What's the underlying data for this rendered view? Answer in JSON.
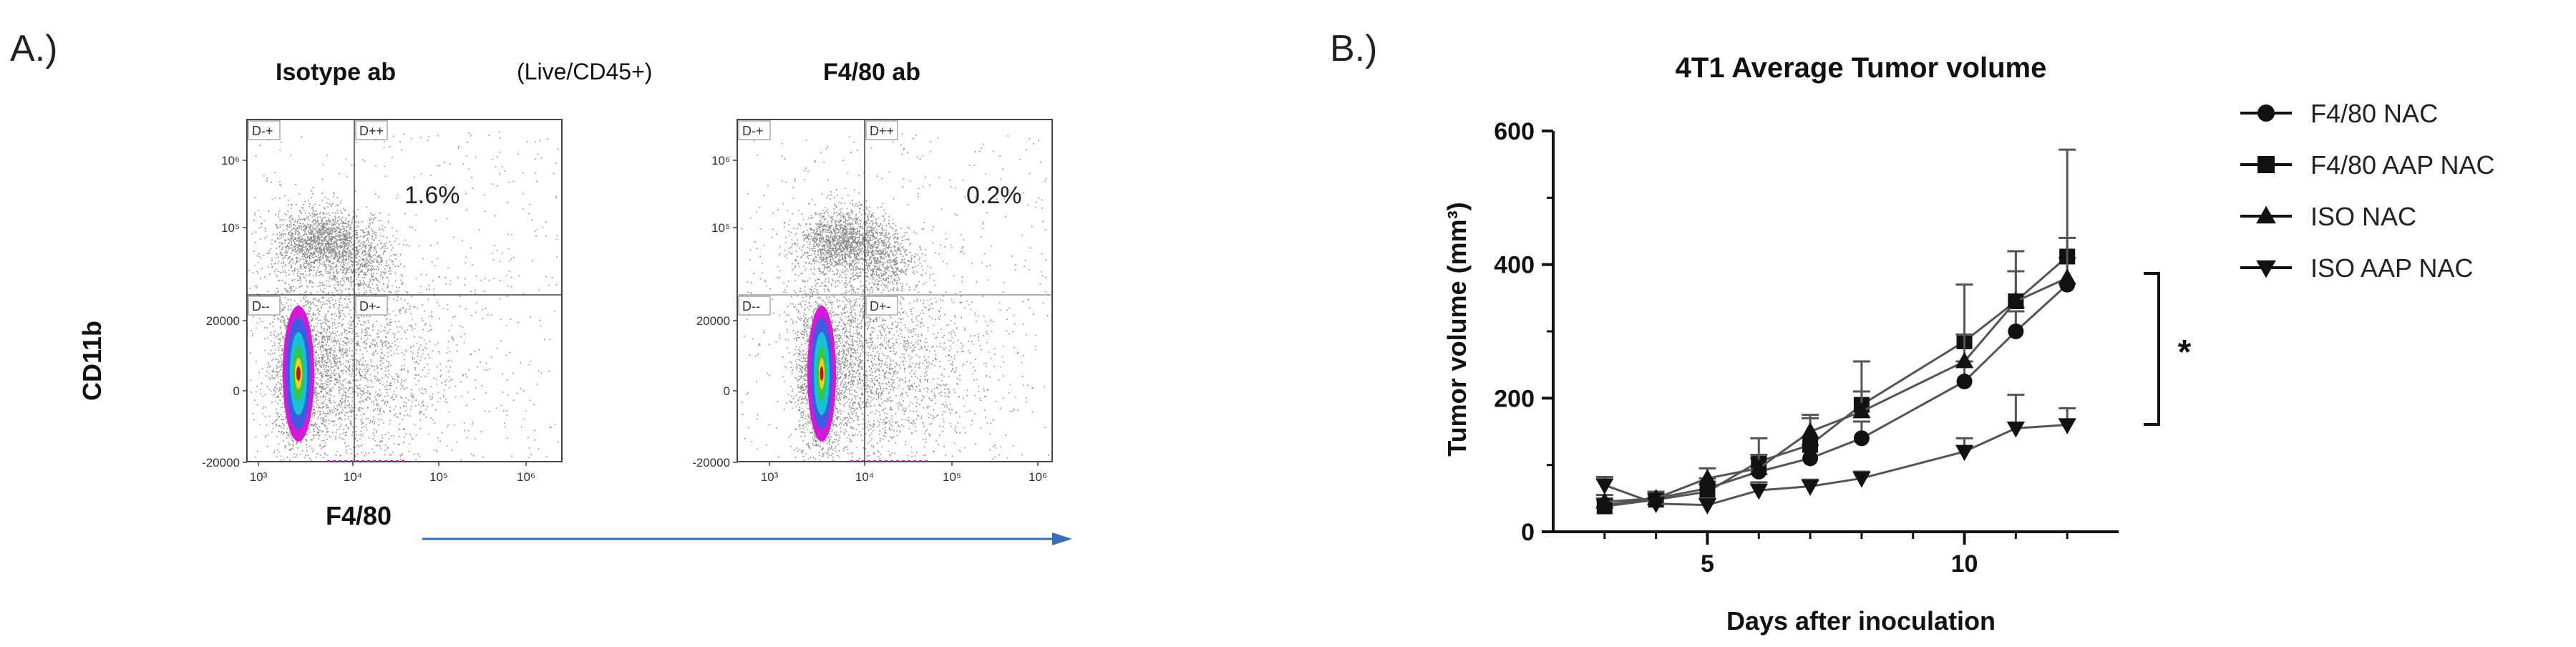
{
  "panelA": {
    "label": "A.)",
    "subtitle": "(Live/CD45+)",
    "ylabel": "CD11b",
    "xlabel": "F4/80",
    "plots": [
      {
        "title": "Isotype ab",
        "percent": "1.6%",
        "gates": [
          "D-+",
          "D++",
          "D--",
          "D+-"
        ],
        "yticks": [
          "10⁶",
          "10⁵",
          "20000",
          "0",
          "-20000"
        ],
        "xticks": [
          "10³",
          "10⁴",
          "10⁵",
          "10⁶"
        ]
      },
      {
        "title": "F4/80 ab",
        "percent": "0.2%",
        "gates": [
          "D-+",
          "D++",
          "D--",
          "D+-"
        ],
        "yticks": [
          "10⁶",
          "10⁵",
          "20000",
          "0",
          "-20000"
        ],
        "xticks": [
          "10³",
          "10⁴",
          "10⁵",
          "10⁶"
        ]
      }
    ]
  },
  "panelB": {
    "label": "B.)",
    "significance": "*",
    "chart_data": {
      "type": "line",
      "title": "4T1 Average Tumor volume",
      "xlabel": "Days after inoculation",
      "ylabel": "Tumor volume  (mm³)",
      "ylim": [
        0,
        600
      ],
      "xlim": [
        2,
        13
      ],
      "yticks": [
        0,
        200,
        400,
        600
      ],
      "xticks": [
        5,
        10
      ],
      "legend_position": "right",
      "series": [
        {
          "name": "F4/80 NAC",
          "marker": "circle",
          "x": [
            3,
            4,
            5,
            6,
            7,
            8,
            10,
            11,
            12
          ],
          "y": [
            40,
            50,
            65,
            90,
            110,
            140,
            225,
            300,
            370
          ],
          "err": [
            10,
            8,
            15,
            20,
            20,
            25,
            30,
            30,
            40
          ]
        },
        {
          "name": "F4/80 AAP NAC",
          "marker": "square",
          "x": [
            3,
            4,
            5,
            6,
            7,
            8,
            10,
            11,
            12
          ],
          "y": [
            38,
            48,
            60,
            105,
            130,
            190,
            285,
            345,
            412
          ],
          "err": [
            10,
            8,
            15,
            35,
            40,
            65,
            85,
            75,
            160
          ]
        },
        {
          "name": "ISO NAC",
          "marker": "triangle-up",
          "x": [
            3,
            4,
            5,
            6,
            7,
            8,
            10,
            11,
            12
          ],
          "y": [
            45,
            50,
            80,
            95,
            150,
            180,
            255,
            345,
            380
          ],
          "err": [
            10,
            10,
            15,
            20,
            25,
            30,
            40,
            45,
            60
          ]
        },
        {
          "name": "ISO AAP NAC",
          "marker": "triangle-down",
          "x": [
            3,
            4,
            5,
            6,
            7,
            8,
            10,
            11,
            12
          ],
          "y": [
            70,
            42,
            40,
            62,
            68,
            80,
            120,
            155,
            160
          ],
          "err": [
            12,
            8,
            10,
            12,
            10,
            10,
            20,
            50,
            25
          ]
        }
      ]
    }
  }
}
